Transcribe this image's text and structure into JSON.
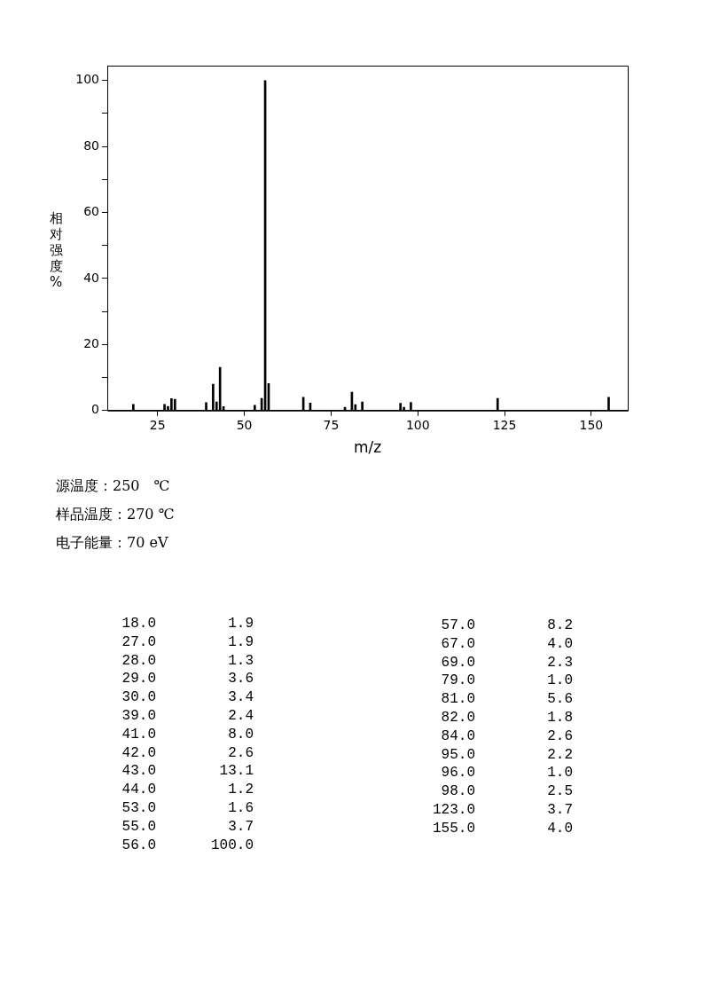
{
  "chart_data": {
    "type": "bar",
    "xlabel": "m/z",
    "ylabel": "相对强度%",
    "x": [
      18,
      27,
      28,
      29,
      30,
      39,
      41,
      42,
      43,
      44,
      53,
      55,
      56,
      57,
      67,
      69,
      79,
      81,
      82,
      84,
      95,
      96,
      98,
      123,
      155
    ],
    "values": [
      1.9,
      1.9,
      1.3,
      3.6,
      3.4,
      2.4,
      8.0,
      2.6,
      13.1,
      1.2,
      1.6,
      3.7,
      100.0,
      8.2,
      4.0,
      2.3,
      1.0,
      5.6,
      1.8,
      2.6,
      2.2,
      1.0,
      2.5,
      3.7,
      4.0
    ],
    "color": "#000000",
    "xlim": [
      10.5,
      160.5
    ],
    "xticks": [
      25,
      50,
      75,
      100,
      125,
      150
    ],
    "ylim": [
      0,
      104.5
    ],
    "yticks": [
      0,
      {
        "value": 10,
        "label": null
      },
      20,
      {
        "value": 30,
        "label": null
      },
      40,
      {
        "value": 50,
        "label": null
      },
      60,
      {
        "value": 70,
        "label": null
      },
      80,
      {
        "value": 90,
        "label": null
      },
      100
    ],
    "grid": false,
    "legend": false,
    "annotations": [
      "源温度：250　℃",
      "样品温度：270 ℃",
      "电子能量：70 eV",
      "18.0 1.9",
      "27.0 1.9",
      "28.0 1.3",
      "29.0 3.6",
      "30.0 3.4",
      "39.0 2.4",
      "41.0 8.0",
      "42.0 2.6",
      "43.0 13.1",
      "44.0 1.2",
      "53.0 1.6",
      "55.0 3.7",
      "56.0 100.0",
      "57.0 8.2",
      "67.0 4.0",
      "69.0 2.3",
      "79.0 1.0",
      "81.0 5.6",
      "82.0 1.8",
      "84.0 2.6",
      "95.0 2.2",
      "96.0 1.0",
      "98.0 2.5",
      "123.0 3.7",
      "155.0 4.0"
    ]
  }
}
